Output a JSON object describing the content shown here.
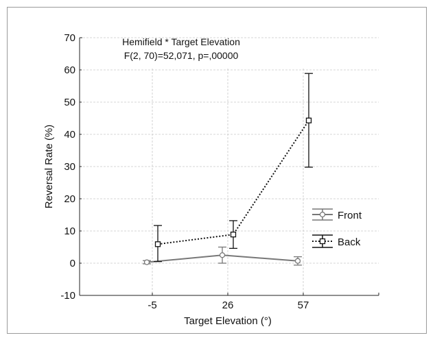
{
  "chart_data": {
    "type": "line",
    "title": "Hemifield * Target Elevation",
    "subtitle": "F(2, 70)=52,071, p=,00000",
    "xlabel": "Target Elevation (°)",
    "ylabel": "Reversal Rate (%)",
    "categories": [
      "-5",
      "26",
      "57"
    ],
    "ylim": [
      -10,
      70
    ],
    "yticks": [
      -10,
      0,
      10,
      20,
      30,
      40,
      50,
      60,
      70
    ],
    "grid": true,
    "legend_position": "right",
    "series": [
      {
        "name": "Front",
        "values": [
          0.3,
          2.5,
          0.7
        ],
        "err_low": [
          -0.2,
          0.0,
          -0.6
        ],
        "err_high": [
          0.8,
          5.0,
          2.0
        ],
        "marker": "circle",
        "line_style": "solid",
        "color": "#777777"
      },
      {
        "name": "Back",
        "values": [
          5.9,
          8.9,
          44.3
        ],
        "err_low": [
          0.5,
          4.6,
          29.8
        ],
        "err_high": [
          11.7,
          13.2,
          58.9
        ],
        "marker": "square",
        "line_style": "dotted",
        "color": "#111111"
      }
    ]
  }
}
